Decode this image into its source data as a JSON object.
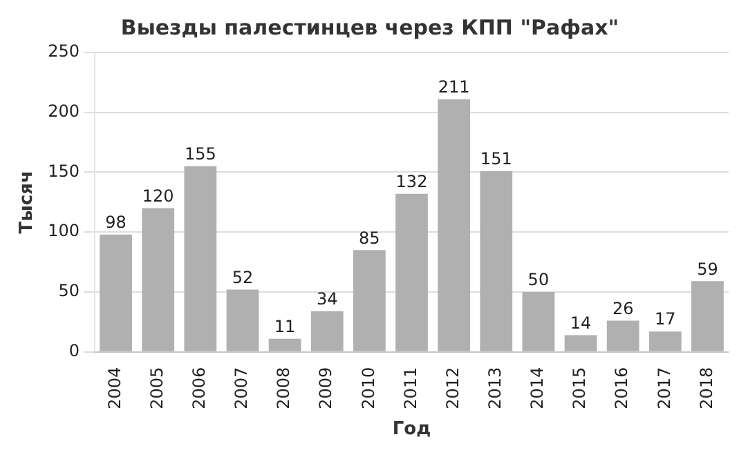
{
  "chart_data": {
    "type": "bar",
    "title": "Выезды палестинцев через КПП \"Рафах\"",
    "xlabel": "Год",
    "ylabel": "Тысяч",
    "categories": [
      "2004",
      "2005",
      "2006",
      "2007",
      "2008",
      "2009",
      "2010",
      "2011",
      "2012",
      "2013",
      "2014",
      "2015",
      "2016",
      "2017",
      "2018"
    ],
    "values": [
      98,
      120,
      155,
      52,
      11,
      34,
      85,
      132,
      211,
      151,
      50,
      14,
      26,
      17,
      59
    ],
    "color": "#b0b0b0",
    "ylim": [
      0,
      250
    ],
    "yticks": [
      0,
      50,
      100,
      150,
      200,
      250
    ],
    "grid": "y",
    "data_labels": true,
    "legend": false
  }
}
